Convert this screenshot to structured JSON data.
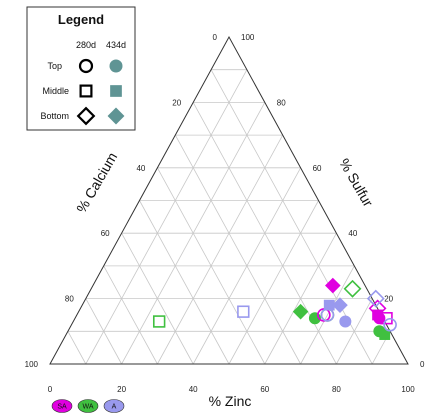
{
  "chart_data": {
    "type": "scatter",
    "subtype": "ternary",
    "axes": {
      "bottom": {
        "label": "% Zinc",
        "ticks": [
          0,
          20,
          40,
          60,
          80,
          100
        ]
      },
      "left": {
        "label": "% Calcium",
        "ticks": [
          100,
          80,
          60,
          40,
          20,
          0
        ]
      },
      "right": {
        "label": "% Sulfur",
        "ticks": [
          0,
          20,
          40,
          60,
          80,
          100
        ]
      }
    },
    "grid": true,
    "grid_step": 10,
    "legend": {
      "title": "Legend",
      "placement": "top-left",
      "columns": [
        "280d",
        "434d"
      ],
      "rows": [
        {
          "label": "Top",
          "shape": "circle"
        },
        {
          "label": "Middle",
          "shape": "square"
        },
        {
          "label": "Bottom",
          "shape": "diamond"
        }
      ],
      "fill_by_column": [
        "hollow",
        "filled"
      ],
      "legend_color": "#5f9494"
    },
    "series_key": [
      {
        "label": "SA",
        "color": "#e000e0"
      },
      {
        "label": "WA",
        "color": "#40c040"
      },
      {
        "label": "A",
        "color": "#9999ee"
      }
    ],
    "points": [
      {
        "group": "WA",
        "depth": "Top",
        "time": "434d",
        "zinc": 67,
        "calcium": 19,
        "sulfur": 14
      },
      {
        "group": "WA",
        "depth": "Middle",
        "time": "280d",
        "zinc": 24,
        "calcium": 63,
        "sulfur": 13
      },
      {
        "group": "WA",
        "depth": "Bottom",
        "time": "434d",
        "zinc": 62,
        "calcium": 22,
        "sulfur": 16
      },
      {
        "group": "WA",
        "depth": "Bottom",
        "time": "280d",
        "zinc": 73,
        "calcium": 4,
        "sulfur": 23
      },
      {
        "group": "WA",
        "depth": "Top",
        "time": "280d",
        "zinc": 70,
        "calcium": 15,
        "sulfur": 15
      },
      {
        "group": "WA",
        "depth": "Top",
        "time": "434d",
        "zinc": 87,
        "calcium": 3,
        "sulfur": 10
      },
      {
        "group": "WA",
        "depth": "Middle",
        "time": "434d",
        "zinc": 89,
        "calcium": 2,
        "sulfur": 9
      },
      {
        "group": "SA",
        "depth": "Top",
        "time": "280d",
        "zinc": 69,
        "calcium": 16,
        "sulfur": 15
      },
      {
        "group": "SA",
        "depth": "Bottom",
        "time": "434d",
        "zinc": 67,
        "calcium": 9,
        "sulfur": 24
      },
      {
        "group": "SA",
        "depth": "Middle",
        "time": "434d",
        "zinc": 84,
        "calcium": 1,
        "sulfur": 15
      },
      {
        "group": "SA",
        "depth": "Top",
        "time": "434d",
        "zinc": 85,
        "calcium": 1,
        "sulfur": 14
      },
      {
        "group": "SA",
        "depth": "Bottom",
        "time": "280d",
        "zinc": 83,
        "calcium": 0,
        "sulfur": 17
      },
      {
        "group": "SA",
        "depth": "Middle",
        "time": "280d",
        "zinc": 87,
        "calcium": -1,
        "sulfur": 14
      },
      {
        "group": "A",
        "depth": "Middle",
        "time": "280d",
        "zinc": 46,
        "calcium": 38,
        "sulfur": 16
      },
      {
        "group": "A",
        "depth": "Middle",
        "time": "434d",
        "zinc": 69,
        "calcium": 13,
        "sulfur": 18
      },
      {
        "group": "A",
        "depth": "Top",
        "time": "280d",
        "zinc": 70,
        "calcium": 15,
        "sulfur": 15
      },
      {
        "group": "A",
        "depth": "Bottom",
        "time": "434d",
        "zinc": 72,
        "calcium": 10,
        "sulfur": 18
      },
      {
        "group": "A",
        "depth": "Top",
        "time": "434d",
        "zinc": 76,
        "calcium": 11,
        "sulfur": 13
      },
      {
        "group": "A",
        "depth": "Top",
        "time": "280d",
        "zinc": 89,
        "calcium": -1,
        "sulfur": 12
      },
      {
        "group": "A",
        "depth": "Bottom",
        "time": "280d",
        "zinc": 81,
        "calcium": -1,
        "sulfur": 20
      }
    ]
  }
}
